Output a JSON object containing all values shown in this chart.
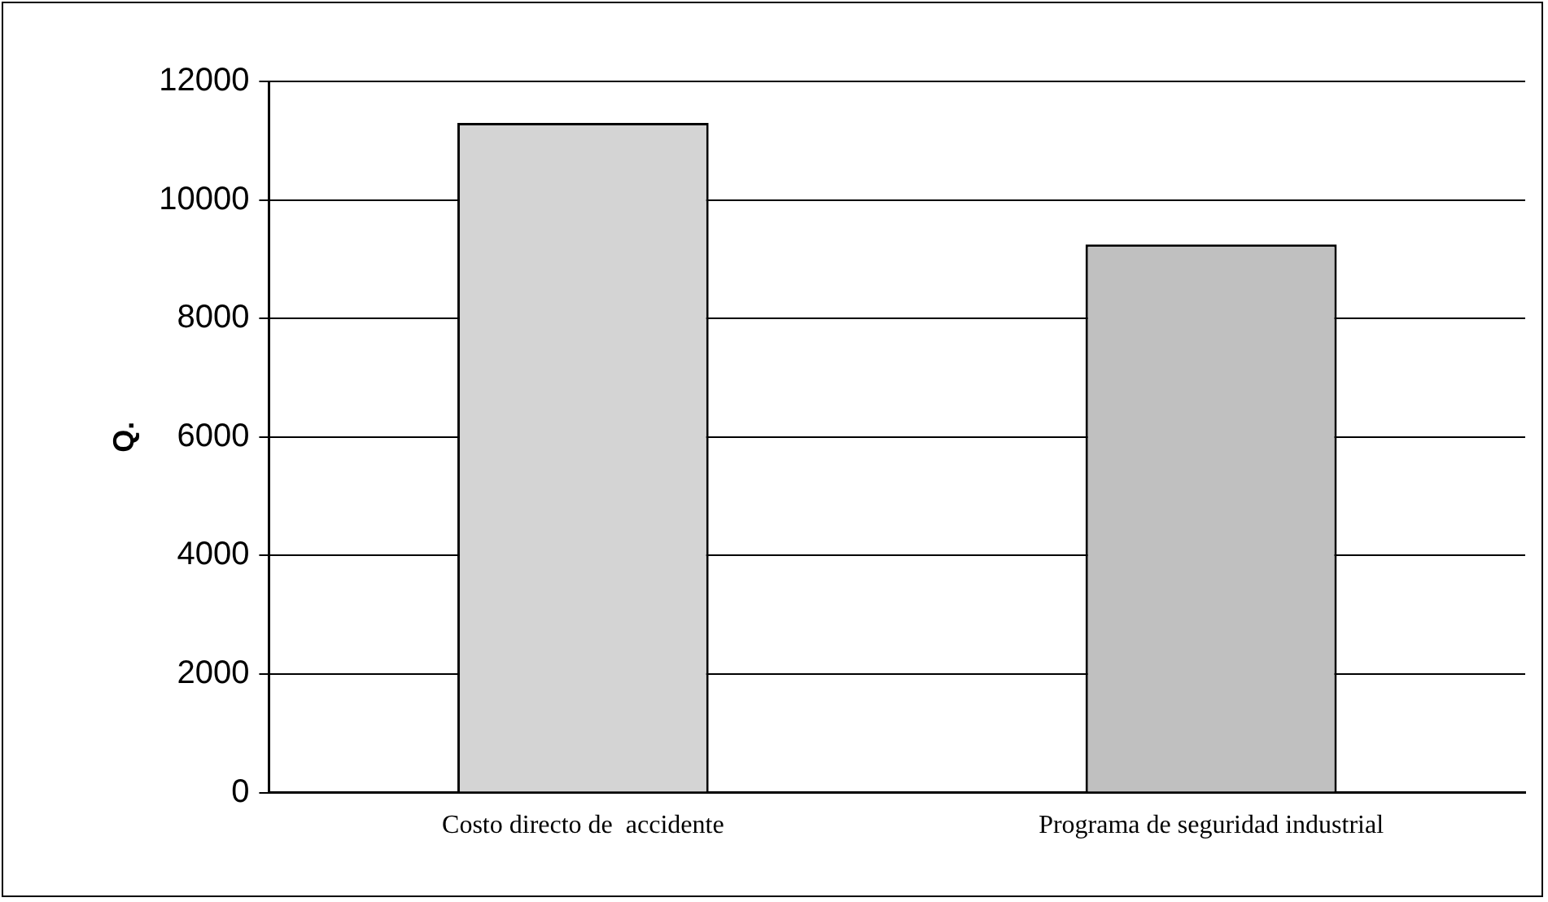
{
  "chart_data": {
    "type": "bar",
    "ylabel": "Q.",
    "categories": [
      "Costo directo de  accidente",
      "Programa de seguridad industrial"
    ],
    "values": [
      11300,
      9250
    ],
    "colors": [
      "#d4d4d4",
      "#c0c0c0"
    ],
    "ylim": [
      0,
      12000
    ],
    "yticks": [
      0,
      2000,
      4000,
      6000,
      8000,
      10000,
      12000
    ],
    "grid": "y",
    "legend": false
  }
}
